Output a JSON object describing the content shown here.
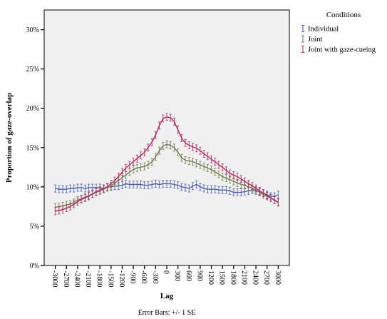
{
  "chart_data": {
    "type": "line",
    "xlabel": "Lag",
    "ylabel": "Proportion of gaze-overlap",
    "footnote": "Error Bars: +/- 1 SE",
    "legend": {
      "title": "Conditions",
      "placement": "top-right outside"
    },
    "x": [
      -3000,
      -2900,
      -2800,
      -2700,
      -2600,
      -2500,
      -2400,
      -2300,
      -2200,
      -2100,
      -2000,
      -1900,
      -1800,
      -1700,
      -1600,
      -1500,
      -1400,
      -1300,
      -1200,
      -1100,
      -1000,
      -900,
      -800,
      -700,
      -600,
      -500,
      -400,
      -300,
      -200,
      -100,
      0,
      100,
      200,
      300,
      400,
      500,
      600,
      700,
      800,
      900,
      1000,
      1100,
      1200,
      1300,
      1400,
      1500,
      1600,
      1700,
      1800,
      1900,
      2000,
      2100,
      2200,
      2300,
      2400,
      2500,
      2600,
      2700,
      2800,
      2900,
      3000
    ],
    "xticks": [
      -3000,
      -2700,
      -2400,
      -2100,
      -1800,
      -1500,
      -1200,
      -900,
      -600,
      -300,
      0,
      300,
      600,
      900,
      1200,
      1500,
      1800,
      2100,
      2400,
      2700,
      3000
    ],
    "yticks": [
      0,
      5,
      10,
      15,
      20,
      25,
      30
    ],
    "ytick_labels": [
      "0%",
      "5%",
      "10%",
      "15%",
      "20%",
      "25%",
      "30%"
    ],
    "xlim": [
      -3300,
      3300
    ],
    "ylim": [
      0,
      32.5
    ],
    "grid": false,
    "error_bar_se": 0.45,
    "series": [
      {
        "name": "Individual",
        "color": "#4a5fb5",
        "values": [
          9.8,
          9.7,
          9.7,
          9.7,
          9.8,
          9.8,
          9.9,
          9.9,
          9.8,
          9.9,
          9.9,
          9.9,
          9.9,
          9.8,
          10.0,
          10.0,
          10.1,
          10.1,
          10.2,
          10.4,
          10.3,
          10.3,
          10.3,
          10.3,
          10.2,
          10.2,
          10.3,
          10.4,
          10.3,
          10.4,
          10.4,
          10.4,
          10.3,
          10.2,
          10.0,
          9.9,
          9.8,
          10.1,
          10.3,
          10.0,
          9.8,
          9.7,
          9.7,
          9.7,
          9.6,
          9.6,
          9.6,
          9.5,
          9.3,
          9.3,
          9.3,
          9.4,
          9.5,
          9.6,
          9.5,
          9.4,
          9.2,
          9.0,
          8.8,
          8.8,
          9.0
        ]
      },
      {
        "name": "Joint",
        "color": "#6e7d4c",
        "values": [
          7.4,
          7.5,
          7.6,
          7.7,
          7.8,
          8.0,
          8.3,
          8.5,
          8.7,
          8.9,
          9.1,
          9.3,
          9.5,
          9.7,
          9.9,
          10.1,
          10.5,
          10.8,
          11.2,
          11.5,
          11.9,
          12.2,
          12.4,
          12.5,
          12.6,
          12.8,
          13.2,
          13.8,
          14.6,
          15.2,
          15.4,
          15.3,
          15.0,
          14.4,
          13.7,
          13.4,
          13.3,
          13.2,
          13.0,
          12.8,
          12.6,
          12.4,
          12.2,
          11.9,
          11.6,
          11.3,
          11.1,
          10.9,
          10.7,
          10.5,
          10.3,
          10.2,
          10.0,
          9.8,
          9.6,
          9.3,
          9.0,
          8.8,
          8.6,
          8.3,
          8.1
        ]
      },
      {
        "name": "Joint with gaze-cueing",
        "color": "#b5295f",
        "values": [
          6.9,
          7.0,
          7.1,
          7.3,
          7.5,
          7.8,
          8.1,
          8.4,
          8.6,
          8.8,
          9.1,
          9.4,
          9.6,
          9.8,
          10.0,
          10.4,
          10.8,
          11.3,
          11.9,
          12.4,
          12.8,
          13.2,
          13.6,
          14.0,
          14.4,
          15.0,
          15.7,
          16.6,
          17.8,
          18.7,
          18.9,
          18.8,
          18.3,
          17.3,
          16.2,
          15.6,
          15.3,
          15.1,
          14.9,
          14.6,
          14.2,
          13.9,
          13.5,
          13.2,
          12.8,
          12.5,
          12.1,
          11.7,
          11.5,
          11.3,
          11.0,
          10.7,
          10.4,
          10.1,
          9.8,
          9.5,
          9.2,
          8.9,
          8.6,
          8.3,
          8.0
        ]
      }
    ]
  }
}
